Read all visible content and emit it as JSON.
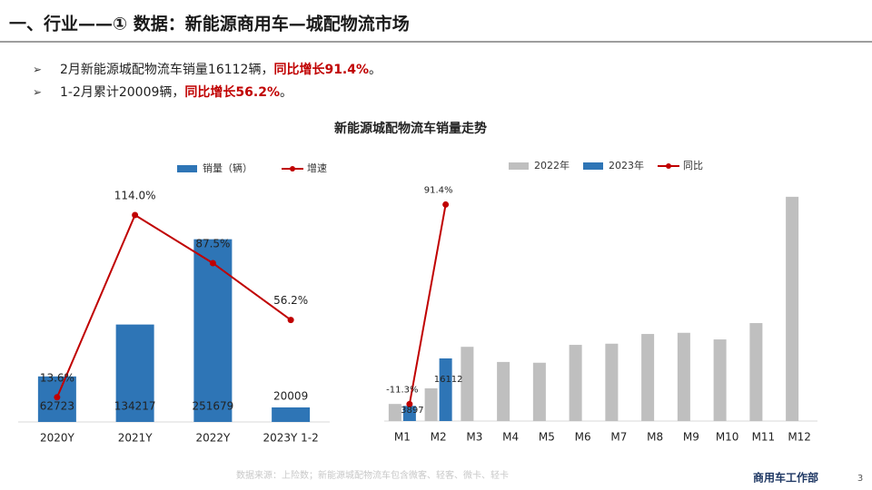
{
  "header": {
    "title": "一、行业——① 数据：新能源商用车—城配物流市场"
  },
  "bullets": [
    {
      "text": "2月新能源城配物流车销量16112辆，",
      "highlight": "同比增长91.4%",
      "end": "。"
    },
    {
      "text": "1-2月累计20009辆，",
      "highlight": "同比增长56.2%",
      "end": "。"
    }
  ],
  "section_title": "新能源城配物流车销量走势",
  "chart_data": [
    {
      "type": "bar-line",
      "categories": [
        "2020Y",
        "2021Y",
        "2022Y",
        "2023Y 1-2"
      ],
      "series": [
        {
          "name": "销量（辆）",
          "color": "#2e75b6",
          "type": "bar",
          "values": [
            62723,
            134217,
            251679,
            20009
          ]
        },
        {
          "name": "增速",
          "color": "#c00000",
          "type": "line",
          "axis": "y2",
          "values": [
            13.6,
            114.0,
            87.5,
            56.2
          ],
          "value_labels": [
            "13.6%",
            "114.0%",
            "87.5%",
            "56.2%"
          ]
        }
      ],
      "ylim": [
        0,
        300000
      ],
      "y2lim": [
        0,
        120
      ]
    },
    {
      "type": "bar-line",
      "categories": [
        "M1",
        "M2",
        "M3",
        "M4",
        "M5",
        "M6",
        "M7",
        "M8",
        "M9",
        "M10",
        "M11",
        "M12"
      ],
      "series": [
        {
          "name": "2022年",
          "color": "#bfbfbf",
          "type": "bar",
          "values": [
            4393,
            8418,
            19100,
            15200,
            15000,
            19600,
            19900,
            22400,
            22700,
            21000,
            25200,
            57700
          ]
        },
        {
          "name": "2023年",
          "color": "#2e75b6",
          "type": "bar",
          "values": [
            3897,
            16112,
            null,
            null,
            null,
            null,
            null,
            null,
            null,
            null,
            null,
            null
          ]
        },
        {
          "name": "同比",
          "color": "#c00000",
          "type": "line",
          "axis": "y2",
          "values": [
            -11.3,
            91.4,
            null,
            null,
            null,
            null,
            null,
            null,
            null,
            null,
            null,
            null
          ],
          "value_labels": [
            "-11.3%",
            "91.4%",
            null,
            null,
            null,
            null,
            null,
            null,
            null,
            null,
            null,
            null
          ]
        }
      ],
      "ylim": [
        0,
        60000
      ],
      "y2lim": [
        -20,
        100
      ]
    }
  ],
  "footer": {
    "source": "数据来源：上险数；新能源城配物流车包含微客、轻客、微卡、轻卡",
    "department": "商用车工作部",
    "page": "3"
  }
}
